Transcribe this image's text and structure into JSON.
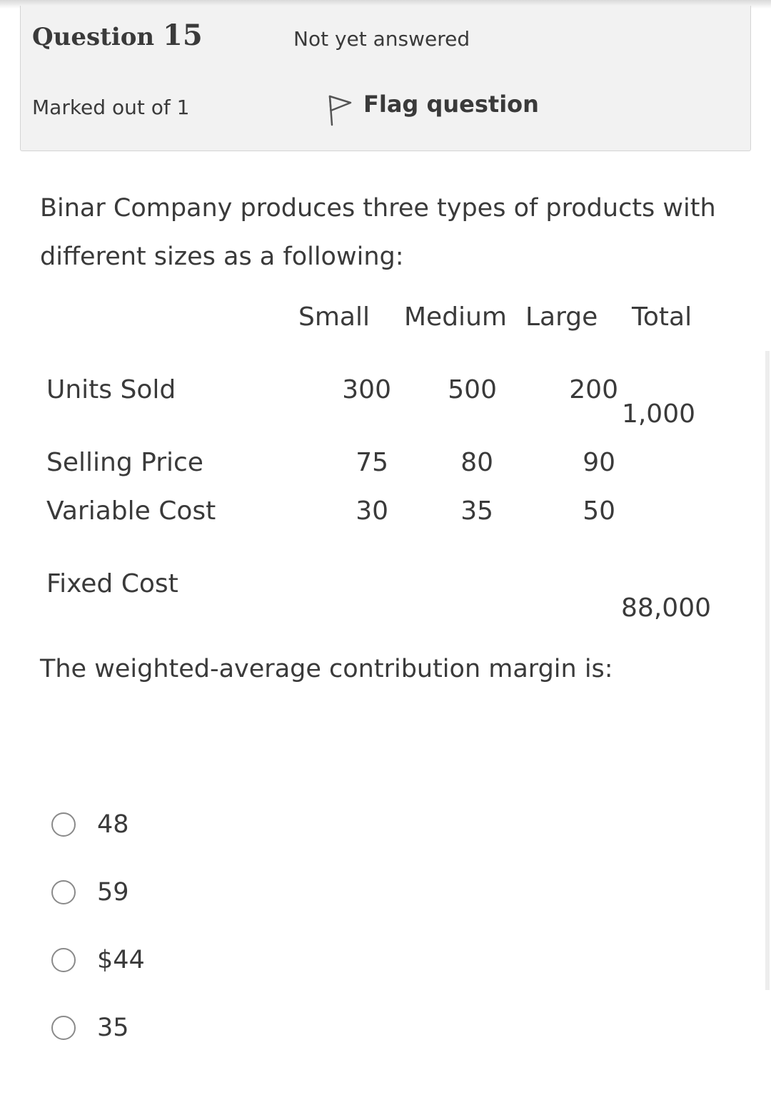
{
  "question": {
    "label": "Question",
    "number": "15",
    "state": "Not yet answered",
    "grade": "Marked out of 1",
    "flag_label": "Flag question",
    "flag_icon": "flag-outline-icon"
  },
  "text": {
    "intro": "Binar Company produces three types of products with different sizes as a following:",
    "prompt": "The weighted-average contribution margin is:"
  },
  "table": {
    "headers": {
      "small": "Small",
      "medium": "Medium",
      "large": "Large",
      "total": "Total"
    },
    "rows": {
      "units_sold": {
        "label": "Units Sold",
        "small": "300",
        "medium": "500",
        "large": "200",
        "total": "1,000"
      },
      "selling_price": {
        "label": "Selling Price",
        "small": "75",
        "medium": "80",
        "large": "90"
      },
      "variable_cost": {
        "label": "Variable Cost",
        "small": "30",
        "medium": "35",
        "large": "50"
      },
      "fixed_cost": {
        "label": "Fixed Cost",
        "total": "88,000"
      }
    }
  },
  "answers": [
    {
      "label": "48",
      "selected": false
    },
    {
      "label": "59",
      "selected": false
    },
    {
      "label": "$44",
      "selected": false
    },
    {
      "label": "35",
      "selected": false
    }
  ]
}
